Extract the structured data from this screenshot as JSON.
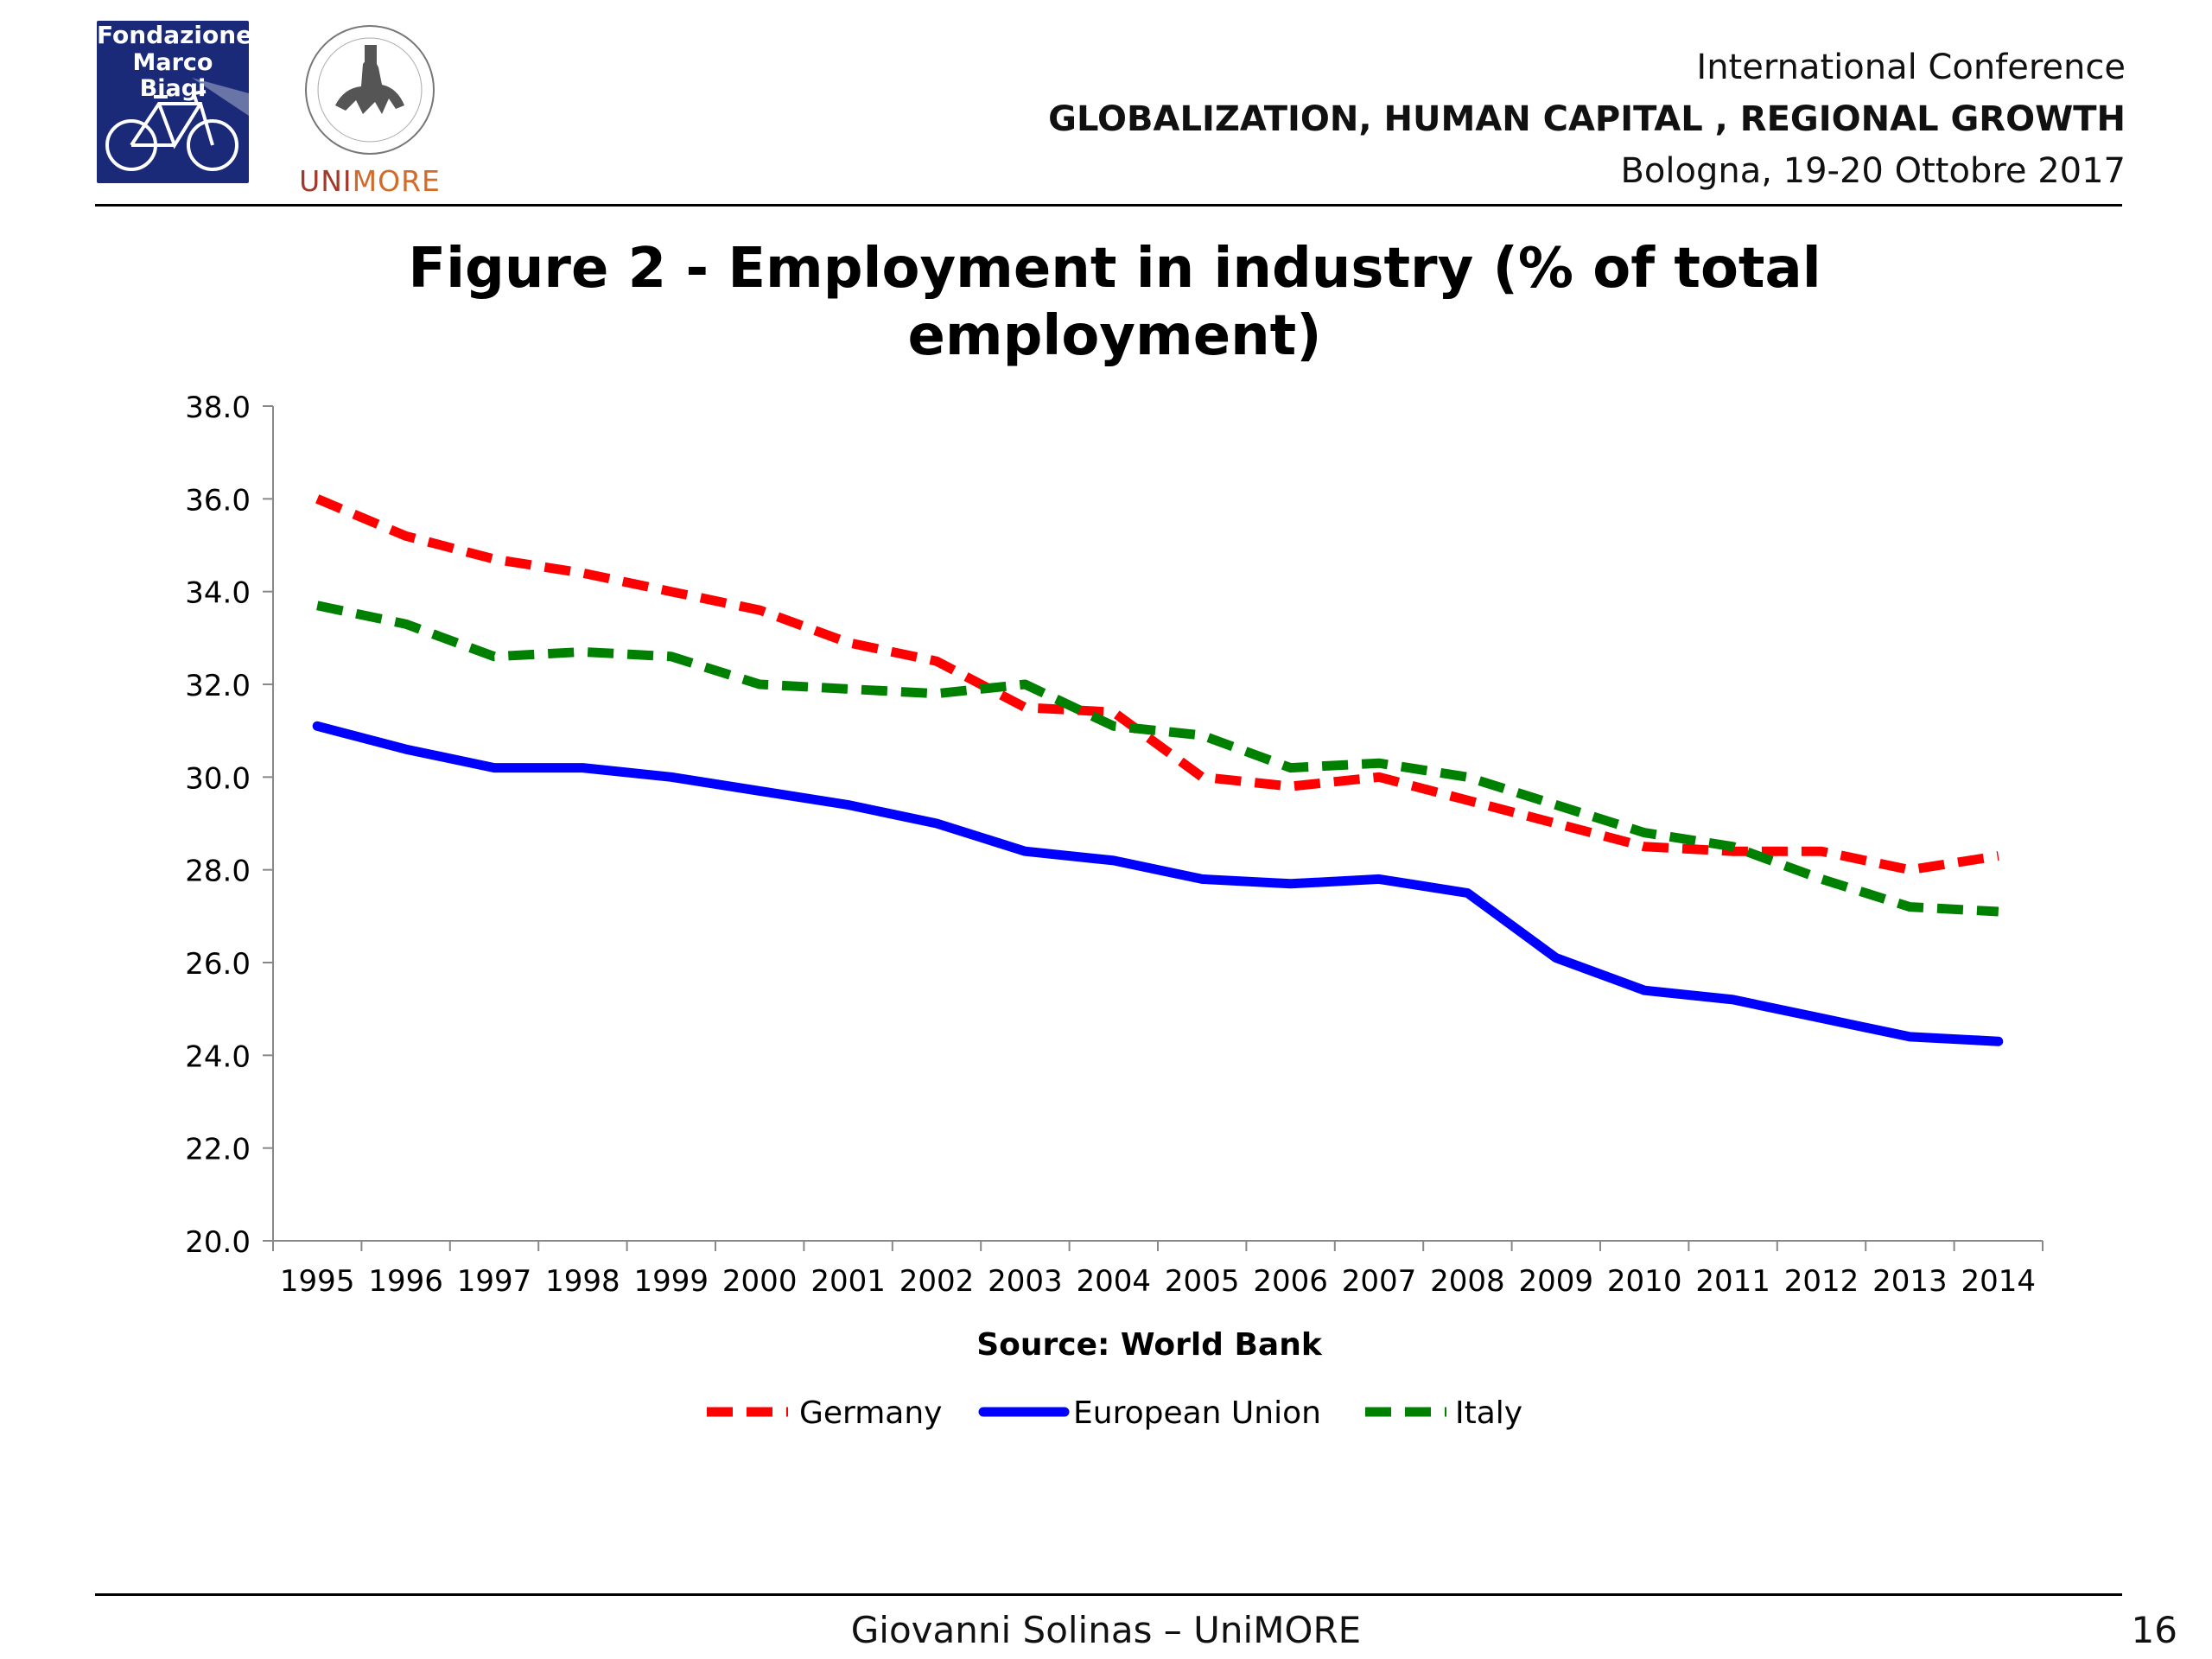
{
  "header": {
    "logo_fmb": {
      "line1": "Fondazione",
      "line2": "Marco Biagi",
      "bg_color": "#1a2a78"
    },
    "logo_unimore": {
      "prefix": "UNI",
      "suffix": "MORE",
      "color": "#a03a2a"
    },
    "conference": {
      "line1": "International Conference",
      "line2": "GLOBALIZATION, HUMAN CAPITAL , REGIONAL GROWTH",
      "line3": "Bologna, 19-20 Ottobre 2017"
    }
  },
  "chart_data": {
    "type": "line",
    "title": "Figure 2 - Employment in industry (% of total employment)",
    "title_line1": "Figure 2 - Employment in industry (% of total",
    "title_line2": "employment)",
    "source": "Source: World Bank",
    "x": [
      "1995",
      "1996",
      "1997",
      "1998",
      "1999",
      "2000",
      "2001",
      "2002",
      "2003",
      "2004",
      "2005",
      "2006",
      "2007",
      "2008",
      "2009",
      "2010",
      "2011",
      "2012",
      "2013",
      "2014"
    ],
    "ylim": [
      20,
      38
    ],
    "yticks": [
      "20.0",
      "22.0",
      "24.0",
      "26.0",
      "28.0",
      "30.0",
      "32.0",
      "34.0",
      "36.0",
      "38.0"
    ],
    "grid": false,
    "legend_position": "bottom",
    "series": [
      {
        "name": "Germany",
        "color": "#ff0000",
        "dash": true,
        "values": [
          36.0,
          35.2,
          34.7,
          34.4,
          34.0,
          33.6,
          32.9,
          32.5,
          31.5,
          31.4,
          30.0,
          29.8,
          30.0,
          29.5,
          29.0,
          28.5,
          28.4,
          28.4,
          28.0,
          28.3
        ]
      },
      {
        "name": "European Union",
        "color": "#0000ff",
        "dash": false,
        "values": [
          31.1,
          30.6,
          30.2,
          30.2,
          30.0,
          29.7,
          29.4,
          29.0,
          28.4,
          28.2,
          27.8,
          27.7,
          27.8,
          27.5,
          26.1,
          25.4,
          25.2,
          24.8,
          24.4,
          24.3
        ]
      },
      {
        "name": "Italy",
        "color": "#008000",
        "dash": true,
        "values": [
          33.7,
          33.3,
          32.6,
          32.7,
          32.6,
          32.0,
          31.9,
          31.8,
          32.0,
          31.1,
          30.9,
          30.2,
          30.3,
          30.0,
          29.4,
          28.8,
          28.5,
          27.8,
          27.2,
          27.1
        ]
      }
    ]
  },
  "footer": {
    "author": "Giovanni Solinas – UniMORE",
    "page_number": "16"
  }
}
